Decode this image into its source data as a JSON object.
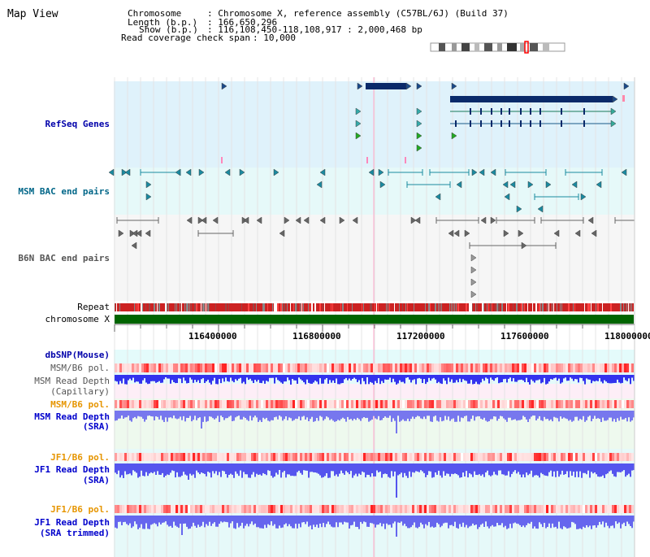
{
  "page_title": "Map View",
  "info": {
    "chromosome_label": "Chromosome",
    "chromosome_value": ": Chromosome X, reference assembly (C57BL/6J) (Build 37)",
    "length_label": "Length (b.p.)",
    "length_value": ": 166,650,296",
    "show_label": "Show (b.p.)",
    "show_value": ": 116,108,450-118,108,917 : 2,000,468 bp",
    "coverage_label": "Read coverage check span",
    "coverage_value": ": 10,000"
  },
  "tracks": {
    "refseq": "RefSeq Genes",
    "msm_bac": "MSM BAC end pairs",
    "b6n_bac": "B6N BAC end pairs",
    "repeat": "Repeat",
    "chromosome": "chromosome X",
    "dbsnp": "dbSNP(Mouse)",
    "msm_pol_1": "MSM/B6 pol.",
    "msm_depth_cap_1": "MSM Read Depth",
    "msm_depth_cap_2": "(Capillary)",
    "msm_pol_2": "MSM/B6 pol.",
    "msm_depth_sra_1": "MSM Read Depth",
    "msm_depth_sra_2": "(SRA)",
    "jf1_pol_1": "JF1/B6 pol.",
    "jf1_depth_sra_1": "JF1 Read Depth",
    "jf1_depth_sra_2": "(SRA)",
    "jf1_pol_2": "JF1/B6 pol.",
    "jf1_trim_1": "JF1 Read Depth",
    "jf1_trim_2": "(SRA trimmed)"
  },
  "axis": {
    "ticks": [
      "116400000",
      "116800000",
      "117200000",
      "117600000",
      "118000000"
    ]
  },
  "colors": {
    "refseq_label": "#0000aa",
    "msm_bac_label": "#006688",
    "b6n_label": "#555555",
    "pol_orange": "#e69500",
    "depth_blue": "#0000cc",
    "refseq_bg": "#dff2fb",
    "msm_bac_bg": "#e6f9f9",
    "chromosome_green": "#006400"
  }
}
